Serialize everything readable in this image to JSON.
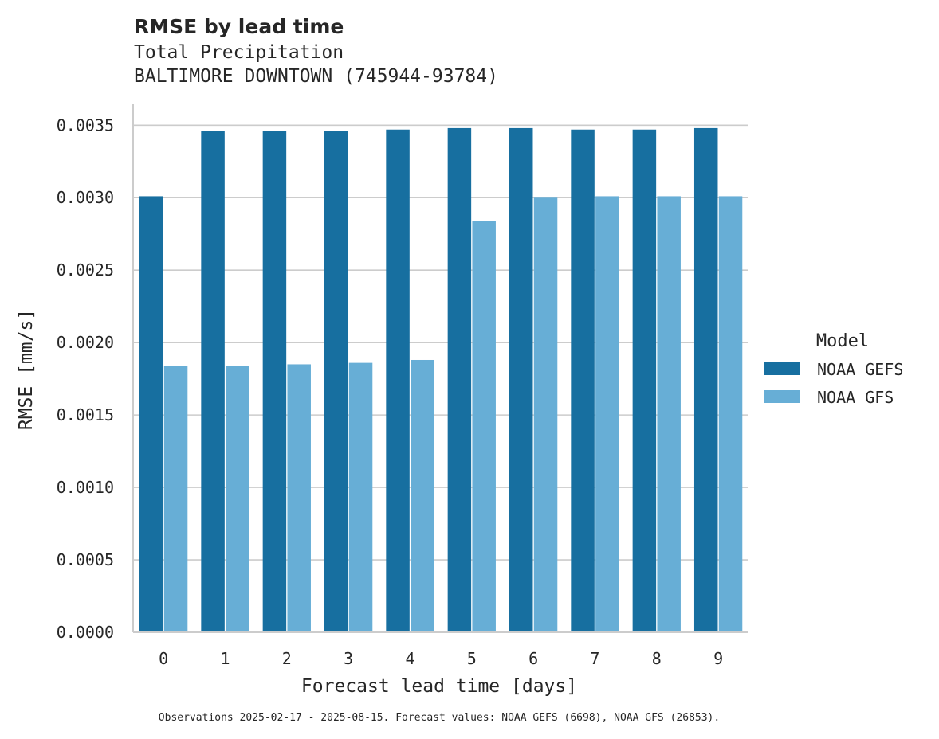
{
  "chart_data": {
    "type": "bar",
    "title": "RMSE by lead time",
    "subtitle_lines": [
      "Total Precipitation",
      "BALTIMORE DOWNTOWN (745944-93784)"
    ],
    "xlabel": "Forecast lead time [days]",
    "ylabel": "RMSE [mm/s]",
    "categories": [
      "0",
      "1",
      "2",
      "3",
      "4",
      "5",
      "6",
      "7",
      "8",
      "9"
    ],
    "ylim": [
      0,
      0.00365
    ],
    "yticks": [
      0.0,
      0.0005,
      0.001,
      0.0015,
      0.002,
      0.0025,
      0.003,
      0.0035
    ],
    "ytick_labels": [
      "0.0000",
      "0.0005",
      "0.0010",
      "0.0015",
      "0.0020",
      "0.0025",
      "0.0030",
      "0.0035"
    ],
    "grid": "y",
    "legend": {
      "title": "Model",
      "position": "right"
    },
    "series": [
      {
        "name": "NOAA GEFS",
        "color": "#176fa0",
        "values": [
          0.00301,
          0.00346,
          0.00346,
          0.00346,
          0.00347,
          0.00348,
          0.00348,
          0.00347,
          0.00347,
          0.00348
        ]
      },
      {
        "name": "NOAA GFS",
        "color": "#67aed6",
        "values": [
          0.00184,
          0.00184,
          0.00185,
          0.00186,
          0.00188,
          0.00284,
          0.003,
          0.00301,
          0.00301,
          0.00301
        ]
      }
    ],
    "footnote": "Observations 2025-02-17 - 2025-08-15. Forecast values: NOAA GEFS (6698), NOAA GFS (26853)."
  }
}
